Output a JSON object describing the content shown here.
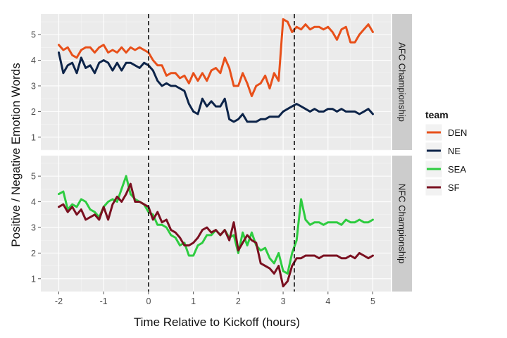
{
  "chart_data": {
    "type": "line",
    "xlabel": "Time Relative to Kickoff (hours)",
    "ylabel": "Positive / Negative Emotion Words",
    "xlim": [
      -2.4,
      5.4
    ],
    "ylim": [
      0.5,
      5.8
    ],
    "xticks": [
      "-2",
      "-1",
      "0",
      "1",
      "2",
      "3",
      "4",
      "5"
    ],
    "yticks": [
      "1",
      "2",
      "3",
      "4",
      "5"
    ],
    "vlines": [
      0,
      3.25
    ],
    "grid": true,
    "legend": {
      "title": "team",
      "position": "right",
      "entries": [
        {
          "label": "DEN",
          "color": "#e8501a"
        },
        {
          "label": "NE",
          "color": "#0d2449"
        },
        {
          "label": "SEA",
          "color": "#2ecc40"
        },
        {
          "label": "SF",
          "color": "#7a1020"
        }
      ]
    },
    "panels": [
      {
        "strip": "AFC Championship",
        "series": [
          {
            "name": "DEN",
            "color": "#e8501a",
            "x": [
              -2.0,
              -1.9,
              -1.8,
              -1.7,
              -1.6,
              -1.5,
              -1.4,
              -1.3,
              -1.2,
              -1.1,
              -1.0,
              -0.9,
              -0.8,
              -0.7,
              -0.6,
              -0.5,
              -0.4,
              -0.3,
              -0.2,
              -0.1,
              0.0,
              0.1,
              0.2,
              0.3,
              0.4,
              0.5,
              0.6,
              0.7,
              0.8,
              0.9,
              1.0,
              1.1,
              1.2,
              1.3,
              1.4,
              1.5,
              1.6,
              1.7,
              1.8,
              1.9,
              2.0,
              2.1,
              2.2,
              2.3,
              2.4,
              2.5,
              2.6,
              2.7,
              2.8,
              2.9,
              3.0,
              3.1,
              3.2,
              3.3,
              3.4,
              3.5,
              3.6,
              3.7,
              3.8,
              3.9,
              4.0,
              4.1,
              4.2,
              4.3,
              4.4,
              4.5,
              4.6,
              4.7,
              4.8,
              4.9,
              5.0
            ],
            "y": [
              4.6,
              4.4,
              4.5,
              4.2,
              4.1,
              4.4,
              4.5,
              4.5,
              4.3,
              4.5,
              4.6,
              4.3,
              4.4,
              4.3,
              4.5,
              4.3,
              4.5,
              4.4,
              4.5,
              4.4,
              4.3,
              4.0,
              3.8,
              3.8,
              3.4,
              3.5,
              3.5,
              3.3,
              3.4,
              3.1,
              3.5,
              3.2,
              3.5,
              3.2,
              3.6,
              3.7,
              3.5,
              4.1,
              3.7,
              3.0,
              3.0,
              3.5,
              3.1,
              2.6,
              3.0,
              3.1,
              3.4,
              2.9,
              3.5,
              3.2,
              5.6,
              5.5,
              5.1,
              5.3,
              5.2,
              5.4,
              5.2,
              5.3,
              5.3,
              5.2,
              5.3,
              5.1,
              4.8,
              5.2,
              5.3,
              4.7,
              4.7,
              5.0,
              5.2,
              5.4,
              5.1
            ]
          },
          {
            "name": "NE",
            "color": "#0d2449",
            "x": [
              -2.0,
              -1.9,
              -1.8,
              -1.7,
              -1.6,
              -1.5,
              -1.4,
              -1.3,
              -1.2,
              -1.1,
              -1.0,
              -0.9,
              -0.8,
              -0.7,
              -0.6,
              -0.5,
              -0.4,
              -0.3,
              -0.2,
              -0.1,
              0.0,
              0.1,
              0.2,
              0.3,
              0.4,
              0.5,
              0.6,
              0.7,
              0.8,
              0.9,
              1.0,
              1.1,
              1.2,
              1.3,
              1.4,
              1.5,
              1.6,
              1.7,
              1.8,
              1.9,
              2.0,
              2.1,
              2.2,
              2.3,
              2.4,
              2.5,
              2.6,
              2.7,
              2.8,
              2.9,
              3.0,
              3.1,
              3.2,
              3.3,
              3.4,
              3.5,
              3.6,
              3.7,
              3.8,
              3.9,
              4.0,
              4.1,
              4.2,
              4.3,
              4.4,
              4.5,
              4.6,
              4.7,
              4.8,
              4.9,
              5.0
            ],
            "y": [
              4.3,
              3.5,
              3.8,
              3.9,
              3.5,
              4.1,
              3.7,
              3.8,
              3.5,
              3.9,
              4.0,
              3.9,
              3.6,
              3.9,
              3.6,
              3.9,
              3.9,
              3.8,
              3.7,
              3.9,
              3.8,
              3.6,
              3.2,
              3.0,
              3.1,
              3.0,
              3.0,
              2.9,
              2.8,
              2.3,
              2.0,
              1.9,
              2.5,
              2.2,
              2.4,
              2.2,
              2.2,
              2.5,
              1.7,
              1.6,
              1.7,
              1.9,
              1.6,
              1.6,
              1.6,
              1.7,
              1.7,
              1.8,
              1.8,
              1.8,
              2.0,
              2.1,
              2.2,
              2.3,
              2.2,
              2.1,
              2.0,
              2.1,
              2.0,
              2.0,
              2.1,
              2.1,
              2.0,
              2.1,
              2.0,
              2.0,
              2.0,
              1.9,
              2.0,
              2.1,
              1.9
            ]
          }
        ]
      },
      {
        "strip": "NFC Championship",
        "series": [
          {
            "name": "SEA",
            "color": "#2ecc40",
            "x": [
              -2.0,
              -1.9,
              -1.8,
              -1.7,
              -1.6,
              -1.5,
              -1.4,
              -1.3,
              -1.2,
              -1.1,
              -1.0,
              -0.9,
              -0.8,
              -0.7,
              -0.6,
              -0.5,
              -0.4,
              -0.3,
              -0.2,
              -0.1,
              0.0,
              0.1,
              0.2,
              0.3,
              0.4,
              0.5,
              0.6,
              0.7,
              0.8,
              0.9,
              1.0,
              1.1,
              1.2,
              1.3,
              1.4,
              1.5,
              1.6,
              1.7,
              1.8,
              1.9,
              2.0,
              2.1,
              2.2,
              2.3,
              2.4,
              2.5,
              2.6,
              2.7,
              2.8,
              2.9,
              3.0,
              3.1,
              3.2,
              3.3,
              3.4,
              3.5,
              3.6,
              3.7,
              3.8,
              3.9,
              4.0,
              4.1,
              4.2,
              4.3,
              4.4,
              4.5,
              4.6,
              4.7,
              4.8,
              4.9,
              5.0
            ],
            "y": [
              4.3,
              4.4,
              3.7,
              3.9,
              3.8,
              4.1,
              4.0,
              3.7,
              3.6,
              3.4,
              3.8,
              4.0,
              4.1,
              4.0,
              4.5,
              5.0,
              4.3,
              4.1,
              4.0,
              3.9,
              3.6,
              3.5,
              3.1,
              3.1,
              3.0,
              2.7,
              2.6,
              2.3,
              2.4,
              1.9,
              1.9,
              2.3,
              2.4,
              2.7,
              2.7,
              2.9,
              2.7,
              2.9,
              2.6,
              2.7,
              2.0,
              2.8,
              2.3,
              2.8,
              2.3,
              2.1,
              2.2,
              1.8,
              1.6,
              2.0,
              1.3,
              1.2,
              2.0,
              2.5,
              4.1,
              3.3,
              3.1,
              3.2,
              3.2,
              3.1,
              3.2,
              3.2,
              3.2,
              3.1,
              3.3,
              3.2,
              3.2,
              3.3,
              3.2,
              3.2,
              3.3
            ]
          },
          {
            "name": "SF",
            "color": "#7a1020",
            "x": [
              -2.0,
              -1.9,
              -1.8,
              -1.7,
              -1.6,
              -1.5,
              -1.4,
              -1.3,
              -1.2,
              -1.1,
              -1.0,
              -0.9,
              -0.8,
              -0.7,
              -0.6,
              -0.5,
              -0.4,
              -0.3,
              -0.2,
              -0.1,
              0.0,
              0.1,
              0.2,
              0.3,
              0.4,
              0.5,
              0.6,
              0.7,
              0.8,
              0.9,
              1.0,
              1.1,
              1.2,
              1.3,
              1.4,
              1.5,
              1.6,
              1.7,
              1.8,
              1.9,
              2.0,
              2.1,
              2.2,
              2.3,
              2.4,
              2.5,
              2.6,
              2.7,
              2.8,
              2.9,
              3.0,
              3.1,
              3.2,
              3.3,
              3.4,
              3.5,
              3.6,
              3.7,
              3.8,
              3.9,
              4.0,
              4.1,
              4.2,
              4.3,
              4.4,
              4.5,
              4.6,
              4.7,
              4.8,
              4.9,
              5.0
            ],
            "y": [
              3.8,
              3.9,
              3.6,
              3.8,
              3.5,
              3.7,
              3.3,
              3.4,
              3.5,
              3.3,
              3.8,
              3.3,
              3.9,
              4.2,
              4.0,
              4.3,
              4.7,
              4.0,
              4.0,
              3.9,
              3.8,
              3.3,
              3.6,
              3.2,
              3.3,
              2.9,
              2.8,
              2.6,
              2.3,
              2.3,
              2.4,
              2.6,
              2.9,
              3.0,
              2.8,
              2.9,
              2.7,
              2.9,
              2.5,
              3.2,
              2.1,
              2.4,
              2.7,
              2.5,
              2.4,
              1.6,
              1.5,
              1.4,
              1.2,
              1.5,
              0.7,
              0.9,
              1.5,
              1.8,
              1.8,
              1.9,
              1.9,
              1.9,
              1.8,
              1.9,
              1.9,
              1.9,
              1.9,
              1.8,
              1.8,
              1.9,
              1.8,
              2.0,
              1.9,
              1.8,
              1.9
            ]
          }
        ]
      }
    ]
  }
}
